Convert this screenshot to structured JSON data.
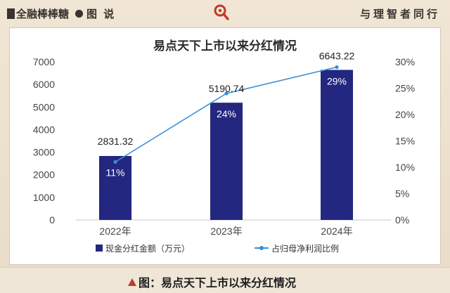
{
  "header": {
    "brand": "全融棒棒糖",
    "section": "图 说",
    "slogan": "与理智者同行"
  },
  "colors": {
    "bar": "#23277f",
    "line": "#3a8fd6",
    "caption_triangle": "#c0392b"
  },
  "chart_data": {
    "type": "bar",
    "title": "易点天下上市以来分红情况",
    "categories": [
      "2022年",
      "2023年",
      "2024年"
    ],
    "series": [
      {
        "name": "现金分红金额（万元）",
        "type": "bar",
        "axis": "left",
        "values": [
          2831.32,
          5190.74,
          6643.22
        ],
        "labels": [
          "2831.32",
          "5190.74",
          "6643.22"
        ]
      },
      {
        "name": "占归母净利润比例",
        "type": "line",
        "axis": "right",
        "values": [
          11,
          24,
          29
        ],
        "labels": [
          "11%",
          "24%",
          "29%"
        ]
      }
    ],
    "ylim": [
      0,
      7000
    ],
    "y_ticks": [
      "0",
      "1000",
      "2000",
      "3000",
      "4000",
      "5000",
      "6000",
      "7000"
    ],
    "y2lim": [
      0,
      30
    ],
    "y2_ticks": [
      "0%",
      "5%",
      "10%",
      "15%",
      "20%",
      "25%",
      "30%"
    ],
    "grid": false,
    "legend_position": "bottom"
  },
  "footer": {
    "caption": "图：易点天下上市以来分红情况"
  }
}
